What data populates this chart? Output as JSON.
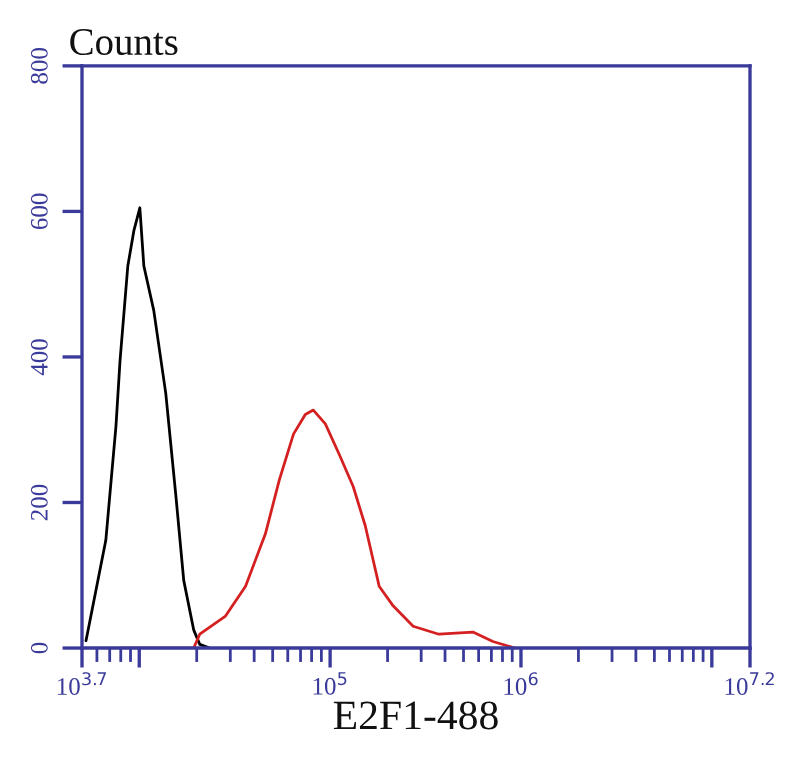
{
  "chart_data": {
    "type": "line",
    "ylabel": "Counts",
    "xlabel": "E2F1-488",
    "log": "x",
    "xlim": [
      5011.87,
      15848932
    ],
    "ylim": [
      0,
      800
    ],
    "xticks": [
      {
        "value": 5011.87,
        "label": "10$^{3.7}$"
      },
      {
        "value": 10000,
        "label": null
      },
      {
        "value": 100000,
        "label": "10$^{5}$"
      },
      {
        "value": 1000000,
        "label": "10$^{6}$"
      },
      {
        "value": 10000000,
        "label": null
      },
      {
        "value": 15848932,
        "label": "10$^{7.2}$"
      }
    ],
    "yticks": [
      0,
      200,
      400,
      600,
      800
    ],
    "grid": false,
    "legend": false,
    "marker": "none",
    "line_style": "solid",
    "series": [
      {
        "color": "#000000",
        "x": [
          5260,
          6680,
          7550,
          7930,
          8710,
          9380,
          10070,
          10570,
          11910,
          13770,
          15520,
          17100,
          19280,
          20750,
          23390
        ],
        "values": [
          10,
          148,
          305,
          395,
          525,
          574,
          605,
          525,
          464,
          350,
          212,
          93,
          25,
          5,
          0
        ]
      },
      {
        "color": "#d42020",
        "x": [
          7930,
          19280,
          20750,
          28310,
          36060,
          45810,
          54200,
          64270,
          74130,
          81660,
          94410,
          111700,
          132100,
          152800,
          180700,
          213800,
          272300,
          371500,
          559800,
          712900,
          929000
        ],
        "values": [
          0,
          0,
          19,
          44,
          85,
          157,
          231,
          294,
          321,
          327,
          308,
          266,
          222,
          168,
          85,
          58,
          30,
          19,
          22,
          9,
          0
        ]
      }
    ]
  }
}
